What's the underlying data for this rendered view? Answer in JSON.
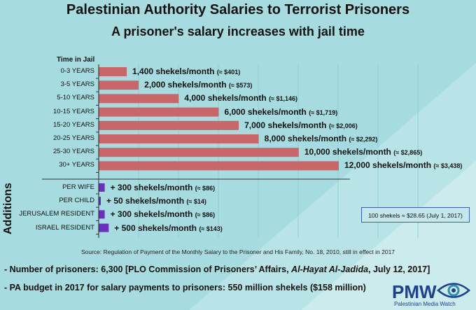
{
  "title": "Palestinian Authority Salaries to Terrorist Prisoners",
  "subtitle": "A prisoner's salary increases with jail time",
  "time_in_jail_header": "Time in Jail",
  "additions_label": "Additions",
  "conversion_note": "100 shekels ≈ $28.65 (July 1, 2017)",
  "source": "Source: Regulation of Payment of the Monthly Salary to the Prisoner and His Family, No. 18, 2010, still in effect in 2017",
  "footer_lines": [
    {
      "prefix": "- Number of prisoners: 6,300 [PLO Commission of Prisoners’ Affairs, ",
      "italic": "Al-Hayat Al-Jadida",
      "suffix": ", July 12, 2017]"
    },
    {
      "prefix": "- PA budget in 2017 for salary payments to prisoners: 550 million shekels ($158 million)",
      "italic": "",
      "suffix": ""
    }
  ],
  "logo": {
    "text": "PMW",
    "subtitle": "Palestinian Media Watch"
  },
  "colors": {
    "salary_bar": "#c9666a",
    "addition_bar": "#6b2fc0",
    "axis": "#222222",
    "background": "#a9dde0"
  },
  "chart_data": {
    "type": "bar",
    "orientation": "horizontal",
    "unit": "shekels/month",
    "grid": true,
    "xlim": [
      0,
      12000
    ],
    "salary": {
      "categories": [
        "0-3 YEARS",
        "3-5 YEARS",
        "5-10 YEARS",
        "10-15 YEARS",
        "15-20 YEARS",
        "20-25 YEARS",
        "25-30 YEARS",
        "30+ YEARS"
      ],
      "values": [
        1400,
        2000,
        4000,
        6000,
        7000,
        8000,
        10000,
        12000
      ],
      "labels": [
        "1,400 shekels/month",
        "2,000 shekels/month",
        "4,000 shekels/month",
        "6,000 shekels/month",
        "7,000 shekels/month",
        "8,000 shekels/month",
        "10,000 shekels/month",
        "12,000 shekels/month"
      ],
      "usd_labels": [
        "(≈ $401)",
        "(≈ $573)",
        "(≈ $1,146)",
        "(≈ $1,719)",
        "(≈ $2,006)",
        "(≈ $2,292)",
        "(≈ $2,865)",
        "(≈ $3,438)"
      ]
    },
    "additions": {
      "categories": [
        "PER WIFE",
        "PER CHILD",
        "JERUSALEM RESIDENT",
        "ISRAEL RESIDENT"
      ],
      "values": [
        300,
        50,
        300,
        500
      ],
      "labels": [
        "+ 300 shekels/month",
        "+ 50 shekels/month",
        "+ 300 shekels/month",
        "+ 500 shekels/month"
      ],
      "usd_labels": [
        "(≈ $86)",
        "(≈ $14)",
        "(≈ $86)",
        "(≈ $143)"
      ]
    }
  }
}
